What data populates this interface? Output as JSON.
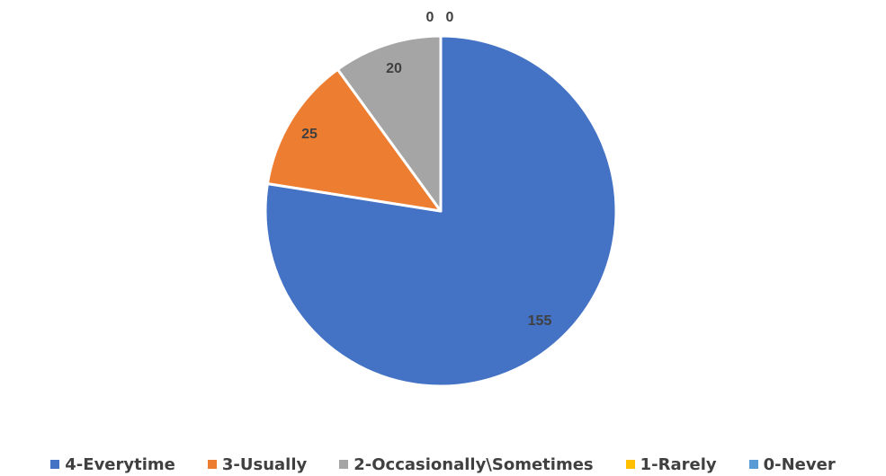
{
  "chart_data": {
    "type": "pie",
    "title": "",
    "legend_position": "bottom",
    "start_angle_deg": 0,
    "direction": "clockwise",
    "slices": [
      {
        "label": "4-Everytime",
        "value": 155,
        "color": "#4472C4",
        "data_label": "155"
      },
      {
        "label": "3-Usually",
        "value": 25,
        "color": "#ED7D31",
        "data_label": "25"
      },
      {
        "label": "2-Occasionally\\Sometimes",
        "value": 20,
        "color": "#A5A5A5",
        "data_label": "20"
      },
      {
        "label": "1-Rarely",
        "value": 0,
        "color": "#FFC000",
        "data_label": "0"
      },
      {
        "label": "0-Never",
        "value": 0,
        "color": "#5B9BD5",
        "data_label": "0"
      }
    ]
  }
}
